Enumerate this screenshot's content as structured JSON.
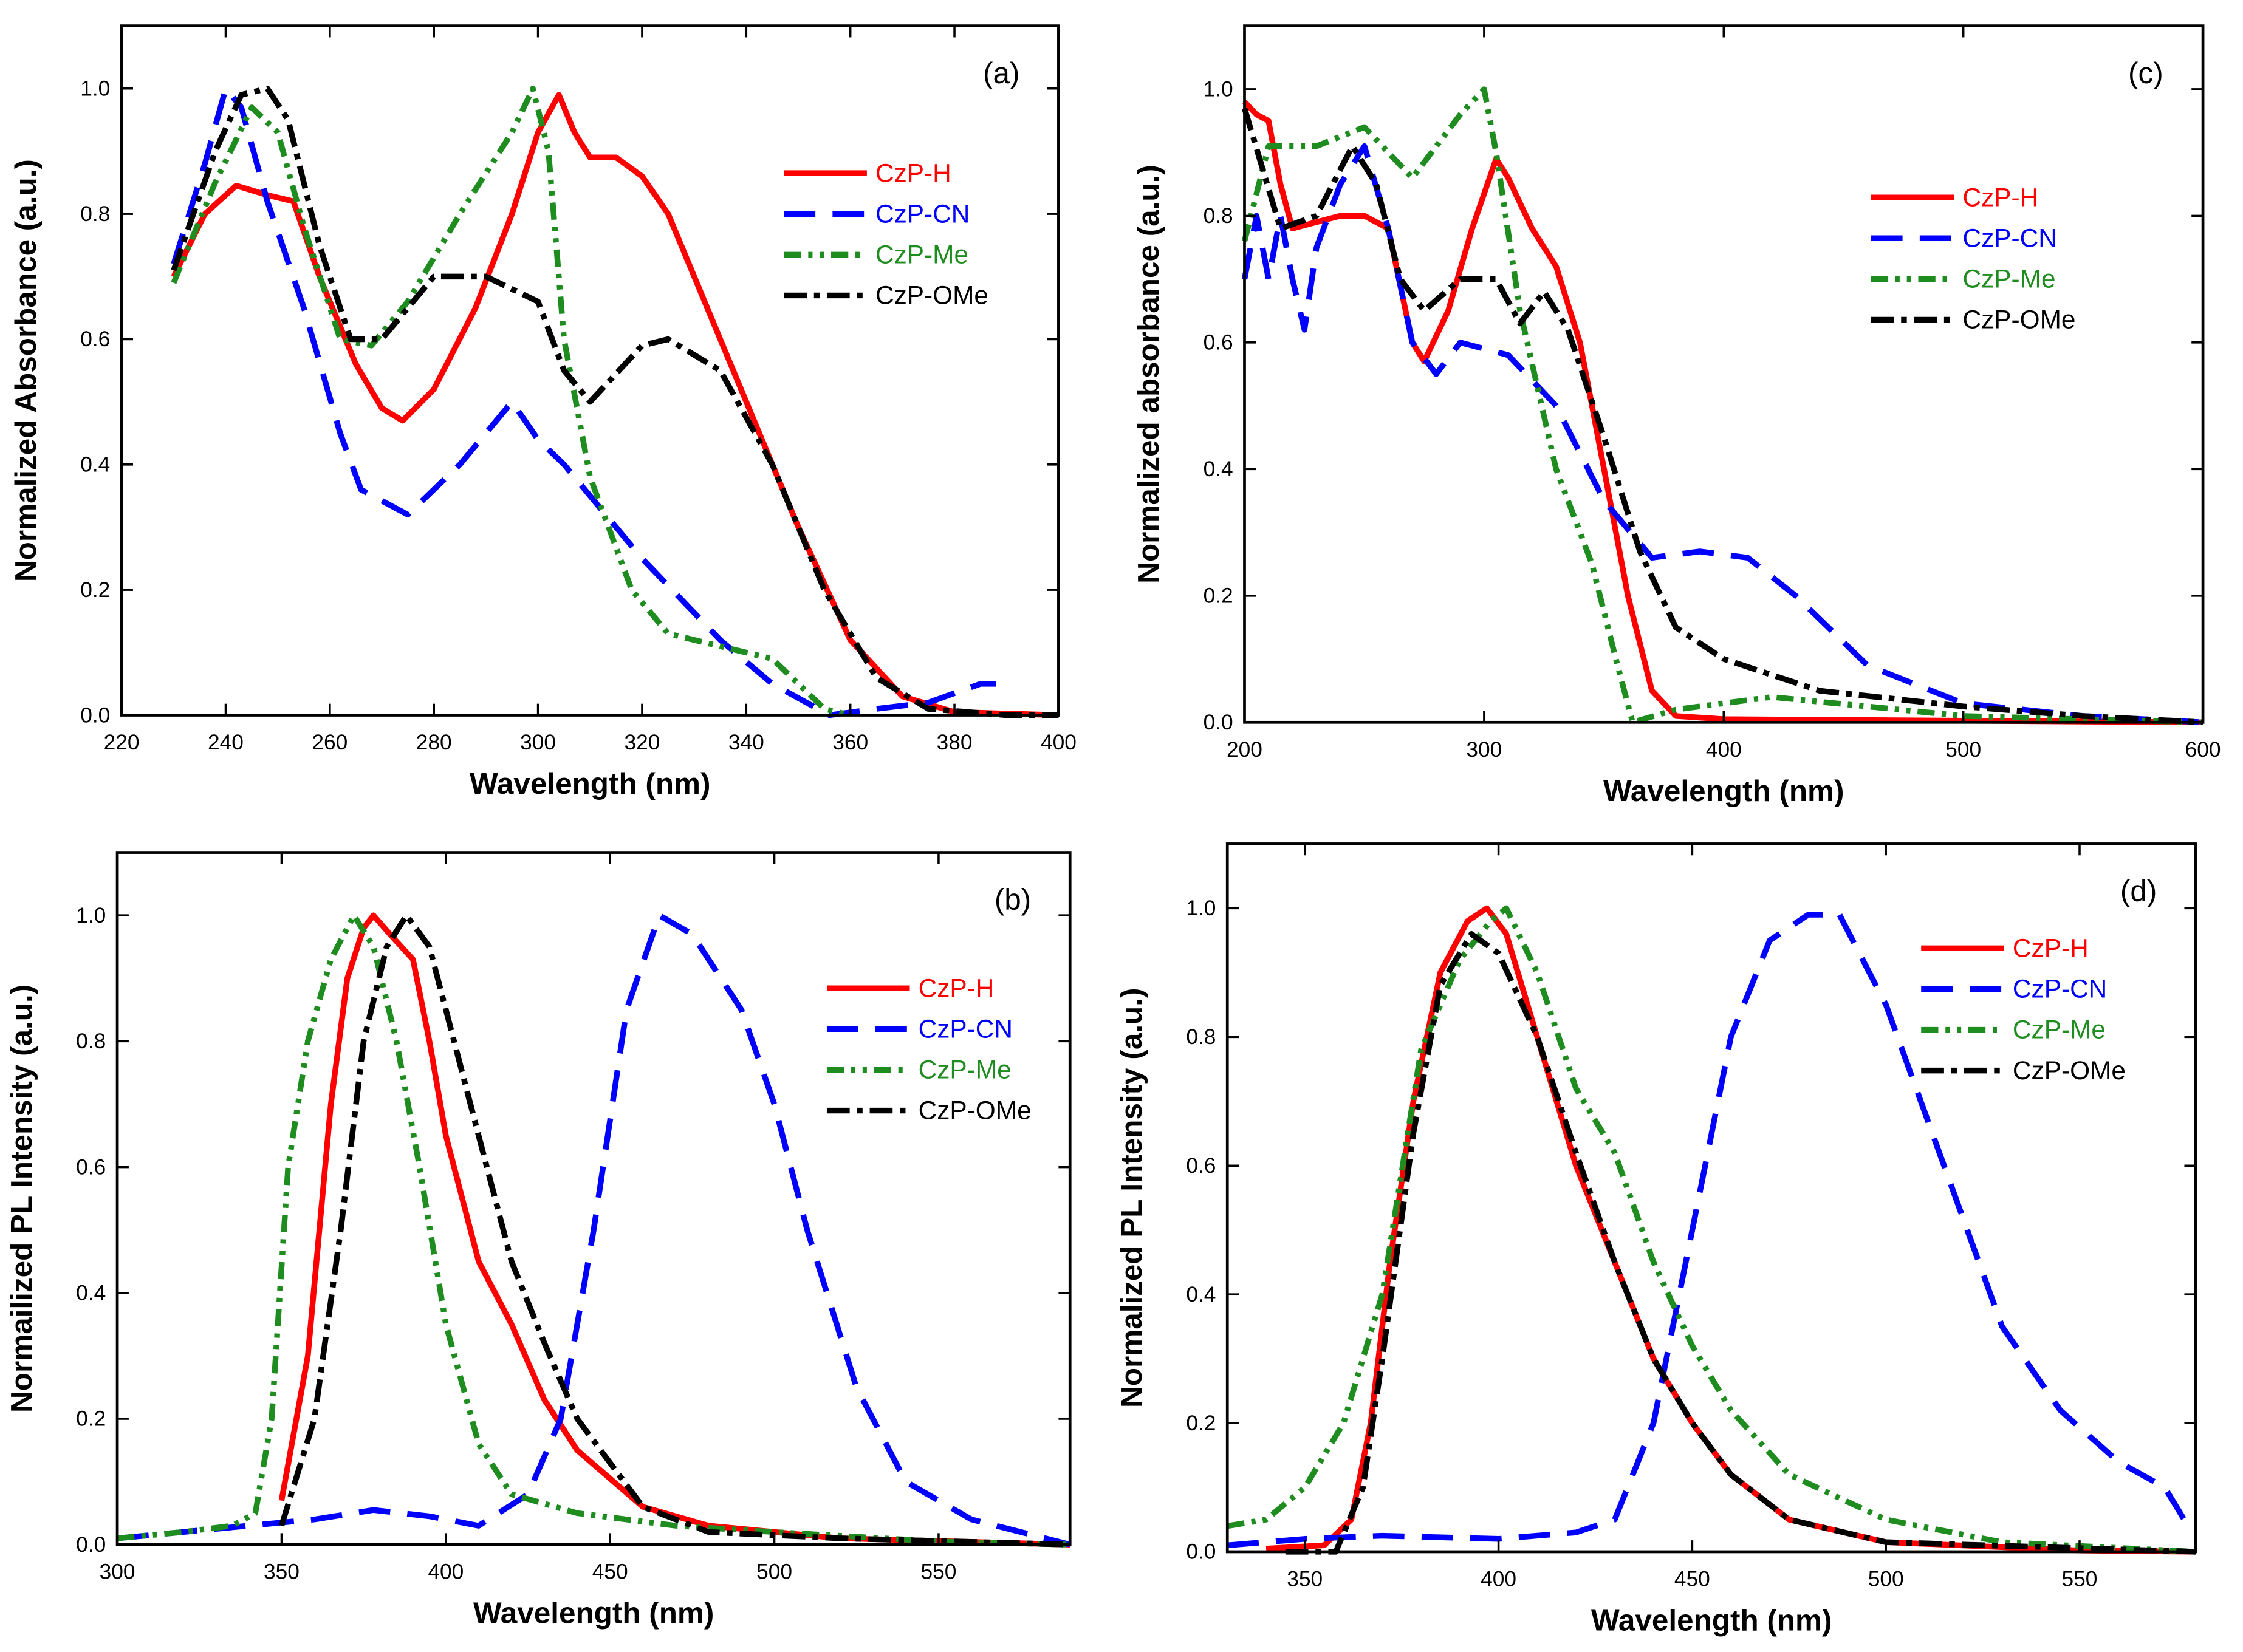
{
  "colors": {
    "CzP-H": "#ff0000",
    "CzP-CN": "#0000ff",
    "CzP-Me": "#1e8c1e",
    "CzP-OMe": "#000000"
  },
  "chart_data": [
    {
      "type": "line",
      "panel_label": "(a)",
      "xlabel": "Wavelength (nm)",
      "ylabel": "Normalized Absorbance (a.u.)",
      "xlim": [
        220,
        400
      ],
      "ylim": [
        0,
        1.1
      ],
      "xticks": [
        220,
        240,
        260,
        280,
        300,
        320,
        340,
        360,
        380,
        400
      ],
      "xtick_labels": [
        "220",
        "240",
        "260",
        "280",
        "300",
        "320",
        "340",
        "360",
        "380",
        "400"
      ],
      "yticks": [
        0,
        0.2,
        0.4,
        0.6,
        0.8,
        1.0
      ],
      "ytick_labels": [
        "0.0",
        "0.2",
        "0.4",
        "0.6",
        "0.8",
        "1.0"
      ],
      "legend": [
        "CzP-H",
        "CzP-CN",
        "CzP-Me",
        "CzP-OMe"
      ],
      "legend_position": "top-right",
      "series": [
        {
          "name": "CzP-H",
          "x": [
            230,
            236,
            242,
            248,
            253,
            258,
            265,
            270,
            274,
            280,
            288,
            295,
            300,
            304,
            307,
            310,
            315,
            320,
            325,
            330,
            340,
            350,
            360,
            370,
            380,
            400
          ],
          "y": [
            0.7,
            0.8,
            0.845,
            0.83,
            0.82,
            0.7,
            0.56,
            0.49,
            0.47,
            0.52,
            0.65,
            0.8,
            0.93,
            0.99,
            0.93,
            0.89,
            0.89,
            0.86,
            0.8,
            0.7,
            0.5,
            0.3,
            0.12,
            0.03,
            0.005,
            0
          ]
        },
        {
          "name": "CzP-CN",
          "x": [
            230,
            236,
            240,
            243,
            248,
            255,
            262,
            266,
            275,
            285,
            295,
            300,
            305,
            320,
            335,
            345,
            356,
            365,
            375,
            385,
            388
          ],
          "y": [
            0.72,
            0.88,
            1.0,
            0.97,
            0.82,
            0.65,
            0.45,
            0.36,
            0.32,
            0.4,
            0.5,
            0.44,
            0.4,
            0.25,
            0.12,
            0.05,
            0.0,
            0.01,
            0.02,
            0.05,
            0.05
          ]
        },
        {
          "name": "CzP-Me",
          "x": [
            230,
            238,
            245,
            250,
            255,
            262,
            268,
            275,
            285,
            295,
            299,
            302,
            305,
            310,
            318,
            325,
            335,
            345,
            350,
            355,
            360
          ],
          "y": [
            0.69,
            0.85,
            0.97,
            0.93,
            0.78,
            0.6,
            0.59,
            0.66,
            0.8,
            0.93,
            1.0,
            0.9,
            0.6,
            0.38,
            0.2,
            0.13,
            0.11,
            0.09,
            0.05,
            0.01,
            0
          ]
        },
        {
          "name": "CzP-OMe",
          "x": [
            230,
            238,
            243,
            248,
            252,
            258,
            264,
            270,
            280,
            290,
            300,
            305,
            310,
            320,
            325,
            335,
            345,
            355,
            365,
            375,
            390,
            400
          ],
          "y": [
            0.71,
            0.9,
            0.99,
            1.0,
            0.95,
            0.75,
            0.6,
            0.6,
            0.7,
            0.7,
            0.66,
            0.55,
            0.5,
            0.59,
            0.6,
            0.55,
            0.4,
            0.2,
            0.06,
            0.01,
            0,
            0
          ]
        }
      ]
    },
    {
      "type": "line",
      "panel_label": "(c)",
      "xlabel": "Wavelength (nm)",
      "ylabel": "Normalized absorbance (a.u.)",
      "xlim": [
        200,
        600
      ],
      "ylim": [
        0,
        1.1
      ],
      "xticks": [
        200,
        300,
        400,
        500,
        600
      ],
      "xtick_labels": [
        "200",
        "300",
        "400",
        "500",
        "600"
      ],
      "yticks": [
        0,
        0.2,
        0.4,
        0.6,
        0.8,
        1.0
      ],
      "ytick_labels": [
        "0.0",
        "0.2",
        "0.4",
        "0.6",
        "0.8",
        "1.0"
      ],
      "legend": [
        "CzP-H",
        "CzP-CN",
        "CzP-Me",
        "CzP-OMe"
      ],
      "legend_position": "top-right",
      "series": [
        {
          "name": "CzP-H",
          "x": [
            200,
            205,
            210,
            215,
            220,
            230,
            240,
            250,
            260,
            270,
            275,
            285,
            295,
            305,
            310,
            320,
            330,
            340,
            350,
            360,
            370,
            380,
            400,
            600
          ],
          "y": [
            0.98,
            0.96,
            0.95,
            0.85,
            0.78,
            0.79,
            0.8,
            0.8,
            0.78,
            0.6,
            0.57,
            0.65,
            0.78,
            0.89,
            0.86,
            0.78,
            0.72,
            0.6,
            0.4,
            0.2,
            0.05,
            0.01,
            0.005,
            0
          ]
        },
        {
          "name": "CzP-CN",
          "x": [
            200,
            205,
            210,
            215,
            220,
            225,
            230,
            240,
            250,
            260,
            270,
            280,
            290,
            300,
            310,
            330,
            350,
            370,
            390,
            410,
            430,
            460,
            500,
            550,
            600
          ],
          "y": [
            0.7,
            0.8,
            0.7,
            0.8,
            0.7,
            0.62,
            0.75,
            0.85,
            0.91,
            0.78,
            0.6,
            0.55,
            0.6,
            0.59,
            0.58,
            0.5,
            0.35,
            0.26,
            0.27,
            0.26,
            0.2,
            0.09,
            0.03,
            0.01,
            0
          ]
        },
        {
          "name": "CzP-Me",
          "x": [
            200,
            210,
            230,
            250,
            270,
            290,
            300,
            305,
            315,
            330,
            345,
            355,
            362,
            380,
            420,
            460,
            500,
            600
          ],
          "y": [
            0.76,
            0.91,
            0.91,
            0.94,
            0.86,
            0.96,
            1.0,
            0.9,
            0.65,
            0.4,
            0.25,
            0.1,
            0,
            0.02,
            0.04,
            0.025,
            0.01,
            0
          ]
        },
        {
          "name": "CzP-OMe",
          "x": [
            200,
            215,
            230,
            245,
            255,
            265,
            275,
            290,
            305,
            315,
            325,
            335,
            350,
            365,
            380,
            400,
            440,
            500,
            550,
            600
          ],
          "y": [
            0.97,
            0.78,
            0.8,
            0.91,
            0.85,
            0.7,
            0.65,
            0.7,
            0.7,
            0.63,
            0.68,
            0.62,
            0.45,
            0.27,
            0.15,
            0.1,
            0.05,
            0.025,
            0.01,
            0
          ]
        }
      ]
    },
    {
      "type": "line",
      "panel_label": "(b)",
      "xlabel": "Wavelength (nm)",
      "ylabel": "Normailized PL Intensity (a.u.)",
      "xlim": [
        300,
        590
      ],
      "ylim": [
        0,
        1.1
      ],
      "xticks": [
        300,
        350,
        400,
        450,
        500,
        550
      ],
      "xtick_labels": [
        "300",
        "350",
        "400",
        "450",
        "500",
        "550"
      ],
      "yticks": [
        0,
        0.2,
        0.4,
        0.6,
        0.8,
        1.0
      ],
      "ytick_labels": [
        "0.0",
        "0.2",
        "0.4",
        "0.6",
        "0.8",
        "1.0"
      ],
      "legend": [
        "CzP-H",
        "CzP-CN",
        "CzP-Me",
        "CzP-OMe"
      ],
      "legend_position": "top-right",
      "series": [
        {
          "name": "CzP-H",
          "x": [
            350,
            358,
            365,
            370,
            375,
            378,
            383,
            390,
            395,
            400,
            410,
            420,
            430,
            440,
            460,
            480,
            520,
            590
          ],
          "y": [
            0.07,
            0.3,
            0.7,
            0.9,
            0.98,
            1.0,
            0.97,
            0.93,
            0.8,
            0.65,
            0.45,
            0.35,
            0.23,
            0.15,
            0.06,
            0.03,
            0.01,
            0
          ]
        },
        {
          "name": "CzP-CN",
          "x": [
            300,
            320,
            340,
            360,
            378,
            395,
            410,
            425,
            435,
            445,
            455,
            465,
            475,
            490,
            500,
            510,
            525,
            540,
            560,
            590
          ],
          "y": [
            0.01,
            0.02,
            0.03,
            0.04,
            0.055,
            0.045,
            0.03,
            0.08,
            0.2,
            0.5,
            0.85,
            1.0,
            0.97,
            0.85,
            0.7,
            0.5,
            0.25,
            0.1,
            0.04,
            0
          ]
        },
        {
          "name": "CzP-Me",
          "x": [
            300,
            320,
            335,
            342,
            347,
            352,
            358,
            365,
            372,
            378,
            385,
            392,
            400,
            410,
            420,
            440,
            470,
            500,
            550,
            590
          ],
          "y": [
            0.01,
            0.02,
            0.03,
            0.05,
            0.2,
            0.6,
            0.8,
            0.93,
            1.0,
            0.95,
            0.8,
            0.6,
            0.35,
            0.16,
            0.08,
            0.05,
            0.03,
            0.02,
            0.005,
            0
          ]
        },
        {
          "name": "CzP-OMe",
          "x": [
            350,
            360,
            368,
            375,
            382,
            388,
            395,
            400,
            410,
            420,
            430,
            440,
            460,
            480,
            520,
            590
          ],
          "y": [
            0.03,
            0.2,
            0.5,
            0.8,
            0.95,
            1.0,
            0.95,
            0.85,
            0.65,
            0.45,
            0.32,
            0.2,
            0.06,
            0.02,
            0.01,
            0
          ]
        }
      ]
    },
    {
      "type": "line",
      "panel_label": "(d)",
      "xlabel": "Wavelength (nm)",
      "ylabel": "Normalized PL Intensity (a.u.)",
      "xlim": [
        330,
        580
      ],
      "ylim": [
        0,
        1.1
      ],
      "xticks": [
        350,
        400,
        450,
        500,
        550
      ],
      "xtick_labels": [
        "350",
        "400",
        "450",
        "500",
        "550"
      ],
      "yticks": [
        0,
        0.2,
        0.4,
        0.6,
        0.8,
        1.0
      ],
      "ytick_labels": [
        "0.0",
        "0.2",
        "0.4",
        "0.6",
        "0.8",
        "1.0"
      ],
      "legend": [
        "CzP-H",
        "CzP-CN",
        "CzP-Me",
        "CzP-OMe"
      ],
      "legend_position": "top-right",
      "series": [
        {
          "name": "CzP-H",
          "x": [
            340,
            355,
            362,
            367,
            372,
            378,
            385,
            392,
            397,
            402,
            410,
            420,
            430,
            440,
            450,
            460,
            475,
            500,
            550,
            580
          ],
          "y": [
            0.005,
            0.01,
            0.05,
            0.2,
            0.45,
            0.7,
            0.9,
            0.98,
            1.0,
            0.96,
            0.8,
            0.6,
            0.45,
            0.3,
            0.2,
            0.12,
            0.05,
            0.015,
            0.002,
            0
          ]
        },
        {
          "name": "CzP-CN",
          "x": [
            330,
            350,
            370,
            400,
            420,
            430,
            440,
            450,
            460,
            470,
            480,
            488,
            500,
            515,
            530,
            545,
            560,
            572,
            578
          ],
          "y": [
            0.01,
            0.02,
            0.025,
            0.02,
            0.03,
            0.05,
            0.2,
            0.5,
            0.8,
            0.95,
            0.99,
            0.99,
            0.85,
            0.6,
            0.35,
            0.22,
            0.14,
            0.1,
            0.04
          ]
        },
        {
          "name": "CzP-Me",
          "x": [
            330,
            340,
            350,
            360,
            370,
            380,
            390,
            398,
            402,
            410,
            420,
            430,
            440,
            450,
            460,
            475,
            500,
            530,
            580
          ],
          "y": [
            0.04,
            0.05,
            0.1,
            0.2,
            0.4,
            0.78,
            0.92,
            0.98,
            1.0,
            0.9,
            0.72,
            0.62,
            0.45,
            0.32,
            0.22,
            0.12,
            0.05,
            0.015,
            0
          ]
        },
        {
          "name": "CzP-OMe",
          "x": [
            345,
            358,
            365,
            370,
            378,
            385,
            393,
            400,
            410,
            420,
            430,
            440,
            450,
            460,
            475,
            500,
            580
          ],
          "y": [
            0,
            0,
            0.1,
            0.3,
            0.65,
            0.88,
            0.96,
            0.93,
            0.8,
            0.62,
            0.45,
            0.3,
            0.2,
            0.12,
            0.05,
            0.015,
            0
          ]
        }
      ]
    }
  ]
}
